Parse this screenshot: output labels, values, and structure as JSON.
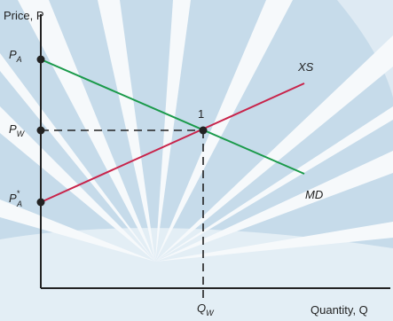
{
  "axes": {
    "y_label": "Price, P",
    "x_label": "Quantity, Q"
  },
  "price_labels": [
    {
      "symbol": "P",
      "subscript": "A"
    },
    {
      "symbol": "P",
      "subscript": "W"
    },
    {
      "symbol": "P",
      "superscript": "*",
      "subscript": "A"
    }
  ],
  "quantity_label": {
    "symbol": "Q",
    "subscript": "W"
  },
  "curves": {
    "export_supply": "XS",
    "import_demand": "MD"
  },
  "equilibrium": "1"
}
